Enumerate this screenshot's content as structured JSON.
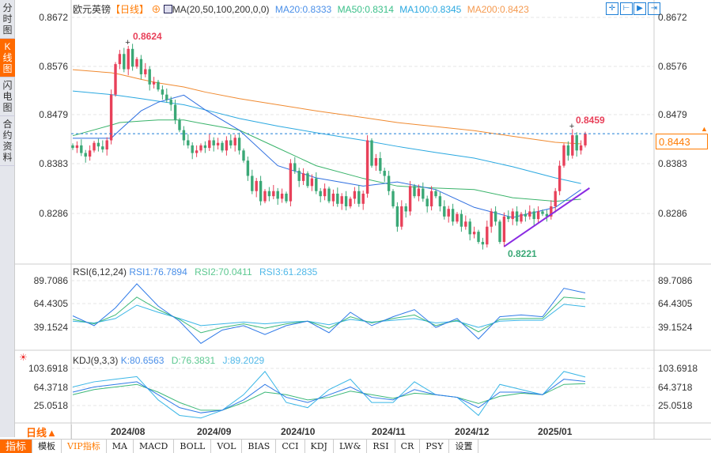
{
  "sidebar": {
    "items": [
      {
        "label": "分时图",
        "active": false
      },
      {
        "label": "K线图",
        "active": true
      },
      {
        "label": "闪电图",
        "active": false
      },
      {
        "label": "合约资料",
        "active": false
      }
    ]
  },
  "header": {
    "symbol": "欧元英镑",
    "period": "【日线】",
    "ma_label": "MA(20,50,100,200,0,0)",
    "ma20": "MA20:0.8333",
    "ma50": "MA50:0.8314",
    "ma100": "MA100:0.8345",
    "ma200": "MA200:0.8423"
  },
  "toolbar": {
    "icons": [
      "crosshair-icon",
      "zoom-range-icon",
      "play-icon",
      "exit-icon"
    ]
  },
  "colors": {
    "up": "#e8415a",
    "down": "#3aa876",
    "ma20": "#2f6fe0",
    "ma50": "#39b36a",
    "ma100": "#2aa8e0",
    "ma200": "#f08a30",
    "trend": "#8a2be2",
    "accent": "#ff6a00"
  },
  "price_axis": {
    "ticks": [
      "0.8672",
      "0.8576",
      "0.8479",
      "0.8383",
      "0.8286"
    ],
    "current": "0.8443"
  },
  "annotations": {
    "high": "0.8624",
    "low": "0.8221",
    "recent_high": "0.8459"
  },
  "rsi": {
    "label": "RSI(6,12,24)",
    "rsi1": "RSI1:76.7894",
    "rsi2": "RSI2:70.0411",
    "rsi3": "RSI3:61.2835",
    "ticks": [
      "89.7086",
      "64.4305",
      "39.1524"
    ]
  },
  "kdj": {
    "label": "KDJ(9,3,3)",
    "k": "K:80.6563",
    "d": "D:76.3831",
    "j": "J:89.2029",
    "ticks": [
      "103.6918",
      "64.3718",
      "25.0518"
    ]
  },
  "dates": [
    "2024/08",
    "2024/09",
    "2024/10",
    "2024/11",
    "2024/12",
    "2025/01"
  ],
  "period_selector": "日线▲",
  "bottom_tabs": [
    "指标",
    "模板",
    "VIP指标",
    "MA",
    "MACD",
    "BOLL",
    "VOL",
    "BIAS",
    "CCI",
    "KDJ",
    "LW&",
    "RSI",
    "CR",
    "PSY",
    "设置"
  ],
  "chart_data": {
    "type": "candlestick",
    "price_range": [
      0.819,
      0.869
    ],
    "closes": [
      0.8415,
      0.842,
      0.8405,
      0.8398,
      0.841,
      0.8425,
      0.8418,
      0.8412,
      0.843,
      0.852,
      0.858,
      0.86,
      0.857,
      0.861,
      0.8575,
      0.859,
      0.856,
      0.857,
      0.854,
      0.8545,
      0.853,
      0.852,
      0.851,
      0.85,
      0.847,
      0.845,
      0.843,
      0.842,
      0.8405,
      0.841,
      0.842,
      0.8415,
      0.843,
      0.842,
      0.8425,
      0.841,
      0.843,
      0.842,
      0.8435,
      0.841,
      0.839,
      0.836,
      0.833,
      0.835,
      0.831,
      0.833,
      0.832,
      0.833,
      0.8315,
      0.8325,
      0.831,
      0.8385,
      0.837,
      0.835,
      0.8365,
      0.834,
      0.8355,
      0.833,
      0.832,
      0.8335,
      0.831,
      0.8325,
      0.8305,
      0.832,
      0.83,
      0.8315,
      0.833,
      0.8305,
      0.8325,
      0.843,
      0.838,
      0.8395,
      0.837,
      0.836,
      0.833,
      0.83,
      0.826,
      0.83,
      0.829,
      0.834,
      0.832,
      0.8335,
      0.8315,
      0.83,
      0.833,
      0.832,
      0.83,
      0.828,
      0.8295,
      0.827,
      0.8285,
      0.826,
      0.827,
      0.8245,
      0.825,
      0.823,
      0.8225,
      0.826,
      0.829,
      0.827,
      0.823,
      0.828,
      0.8275,
      0.829,
      0.827,
      0.8285,
      0.828,
      0.829,
      0.8275,
      0.829,
      0.8285,
      0.828,
      0.83,
      0.833,
      0.838,
      0.842,
      0.84,
      0.844,
      0.841,
      0.842,
      0.8443
    ],
    "ma_points_index": [
      0,
      9,
      11,
      16,
      20,
      26,
      31,
      39,
      48,
      57,
      68,
      76,
      85,
      94,
      103,
      113,
      119
    ],
    "ma20": [
      0.8434,
      0.8434,
      0.845,
      0.8488,
      0.8505,
      0.8519,
      0.849,
      0.845,
      0.838,
      0.8356,
      0.834,
      0.8348,
      0.8333,
      0.8298,
      0.8278,
      0.8298,
      0.8333
    ],
    "ma50": [
      0.8439,
      0.846,
      0.8465,
      0.8468,
      0.847,
      0.847,
      0.8462,
      0.845,
      0.8415,
      0.838,
      0.8355,
      0.834,
      0.8336,
      0.8333,
      0.8317,
      0.831,
      0.8314
    ],
    "ma100": [
      0.8527,
      0.852,
      0.8518,
      0.8512,
      0.8507,
      0.85,
      0.849,
      0.8473,
      0.8458,
      0.8445,
      0.843,
      0.8418,
      0.8406,
      0.8395,
      0.8378,
      0.8356,
      0.8345
    ],
    "ma200": [
      0.8569,
      0.8563,
      0.856,
      0.855,
      0.8543,
      0.8535,
      0.8525,
      0.8512,
      0.85,
      0.8488,
      0.8475,
      0.8465,
      0.8457,
      0.8449,
      0.8438,
      0.8426,
      0.8423
    ],
    "trendline": [
      {
        "index": 101,
        "price": 0.8221
      },
      {
        "index": 121,
        "price": 0.8336
      }
    ],
    "rsi_range": [
      15,
      95
    ],
    "rsi1": [
      51,
      40,
      60,
      87,
      62,
      45,
      20,
      35,
      40,
      30,
      40,
      45,
      32,
      55,
      40,
      50,
      58,
      38,
      48,
      25,
      50,
      52,
      50,
      82,
      76.8
    ],
    "rsi2": [
      47,
      42,
      52,
      72,
      58,
      47,
      32,
      38,
      42,
      37,
      42,
      45,
      37,
      50,
      43,
      48,
      52,
      40,
      46,
      33,
      47,
      48,
      48,
      72,
      70.0
    ],
    "rsi3": [
      45,
      43,
      48,
      63,
      55,
      48,
      40,
      42,
      44,
      42,
      44,
      45,
      41,
      47,
      44,
      46,
      48,
      43,
      45,
      38,
      45,
      46,
      46,
      64,
      61.3
    ],
    "kdj_range": [
      5,
      112
    ],
    "k": [
      60,
      70,
      75,
      80,
      55,
      30,
      20,
      25,
      45,
      75,
      50,
      40,
      55,
      70,
      50,
      45,
      65,
      55,
      50,
      30,
      60,
      60,
      55,
      85,
      80.7
    ],
    "d": [
      55,
      65,
      70,
      75,
      60,
      40,
      25,
      25,
      40,
      60,
      55,
      45,
      50,
      62,
      55,
      48,
      58,
      55,
      50,
      38,
      52,
      58,
      55,
      75,
      76.4
    ],
    "j": [
      70,
      80,
      85,
      90,
      45,
      15,
      10,
      25,
      55,
      100,
      40,
      30,
      65,
      85,
      40,
      40,
      80,
      55,
      50,
      15,
      75,
      65,
      55,
      100,
      89.2
    ]
  }
}
